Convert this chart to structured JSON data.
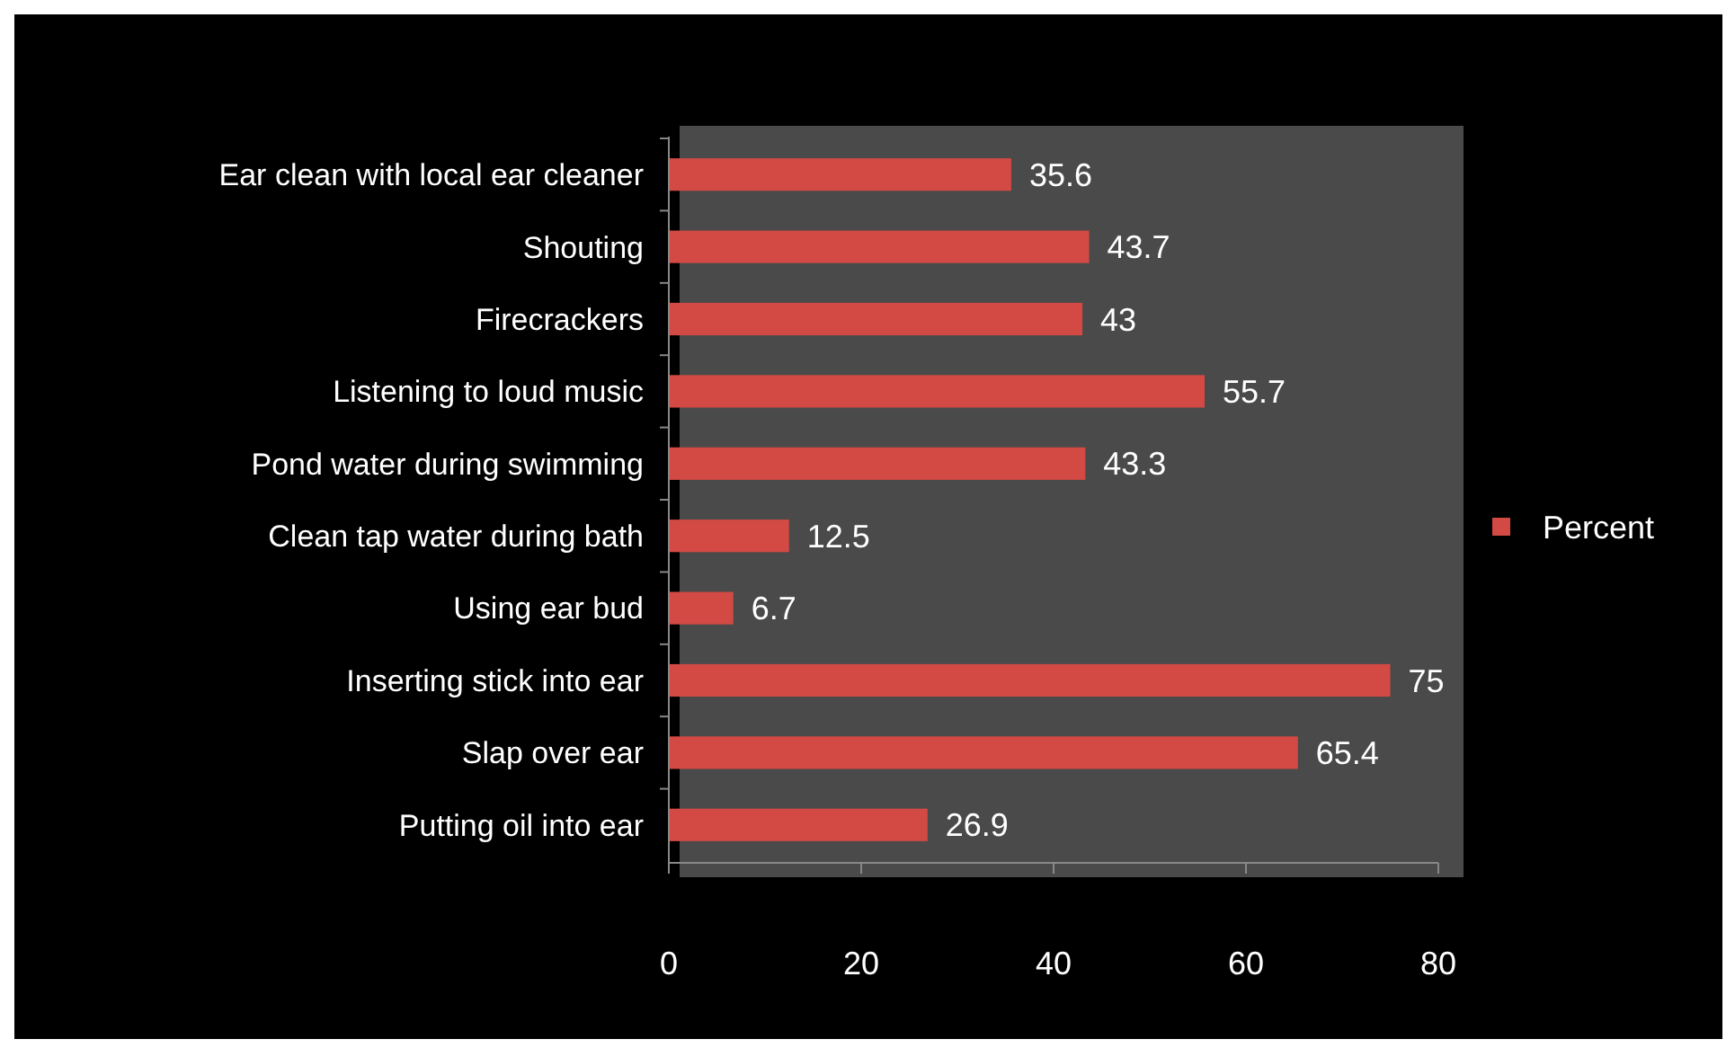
{
  "chart_data": {
    "type": "bar",
    "orientation": "horizontal",
    "categories": [
      "Ear clean with local ear cleaner",
      "Shouting",
      "Firecrackers",
      "Listening to loud music",
      "Pond water during swimming",
      "Clean tap water during bath",
      "Using ear bud",
      "Inserting stick into ear",
      "Slap over ear",
      "Putting oil into ear"
    ],
    "series": [
      {
        "name": "Percent",
        "color": "#d24a43",
        "values": [
          35.6,
          43.7,
          43,
          55.7,
          43.3,
          12.5,
          6.7,
          75,
          65.4,
          26.9
        ]
      }
    ],
    "xlim": [
      0,
      80
    ],
    "xticks": [
      0,
      20,
      40,
      60,
      80
    ],
    "data_labels": true,
    "legend": "right",
    "grid": false
  }
}
